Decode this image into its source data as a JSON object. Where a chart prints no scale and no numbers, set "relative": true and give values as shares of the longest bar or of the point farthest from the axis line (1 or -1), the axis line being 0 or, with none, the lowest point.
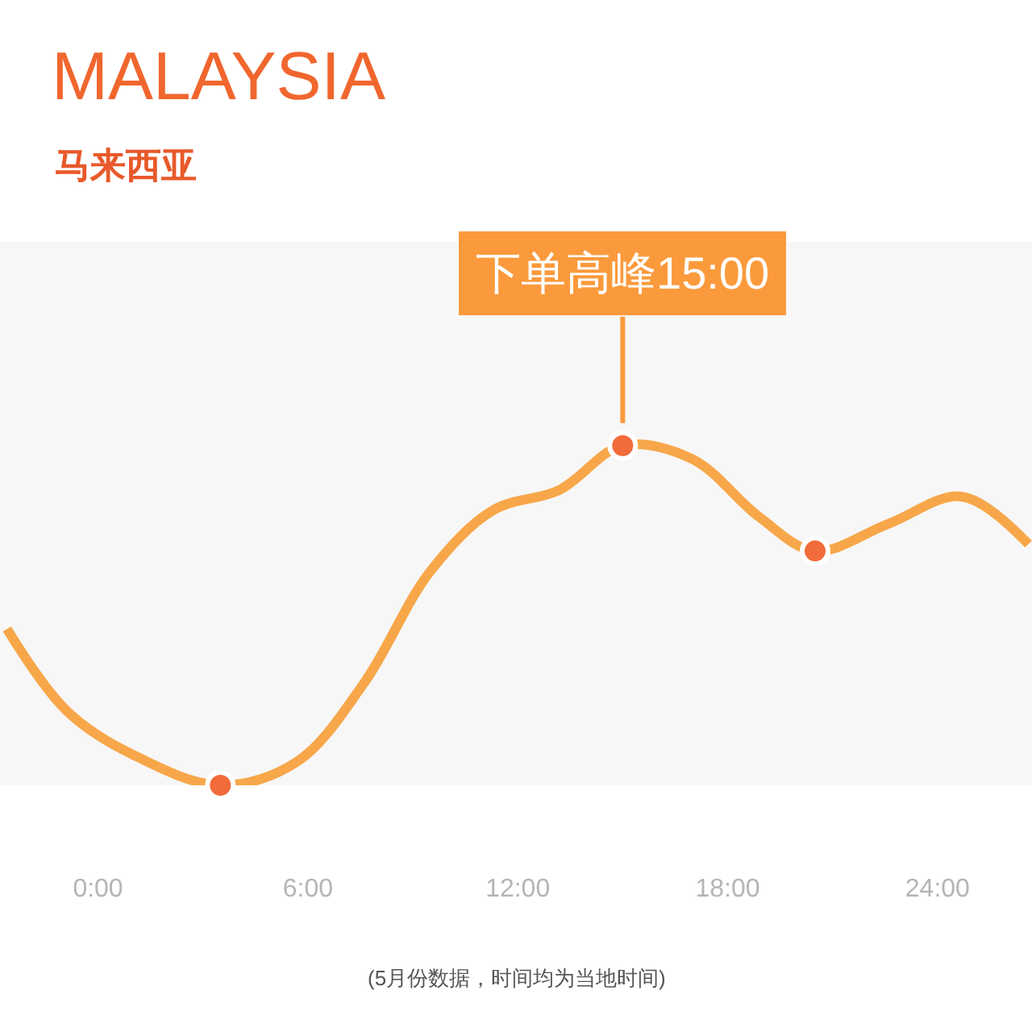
{
  "chart_data": {
    "type": "line",
    "title": "MALAYSIA",
    "subtitle": "马来西亚",
    "relative": true,
    "x": [
      -2.6,
      -0.9,
      1,
      3.5,
      5.7,
      7.6,
      9.5,
      11.3,
      13.2,
      15,
      17,
      18.9,
      20.5,
      22.6,
      24.7,
      26.6
    ],
    "series": [
      {
        "type": "line",
        "color": "#f7a74a",
        "values": [
          0.46,
          0.22,
          0.09,
          0,
          0.07,
          0.3,
          0.63,
          0.81,
          0.87,
          1,
          0.96,
          0.79,
          0.69,
          0.77,
          0.85,
          0.71
        ]
      },
      {
        "type": "scatter",
        "color": "#f26b3a",
        "x": [
          3.5,
          15,
          20.5
        ],
        "values": [
          0,
          1,
          0.69
        ]
      }
    ],
    "xlim": [
      -2.8,
      26.7
    ],
    "xticks": [
      {
        "value": 0,
        "label": "0:00"
      },
      {
        "value": 6,
        "label": "6:00"
      },
      {
        "value": 12,
        "label": "12:00"
      },
      {
        "value": 18,
        "label": "18:00"
      },
      {
        "value": 24,
        "label": "24:00"
      }
    ],
    "annotations": [
      {
        "text": "下单高峰15:00",
        "x": 15,
        "y": 1
      },
      "(5月份数据，时间均为当地时间)"
    ],
    "grid": false,
    "tick_labels": "x"
  }
}
